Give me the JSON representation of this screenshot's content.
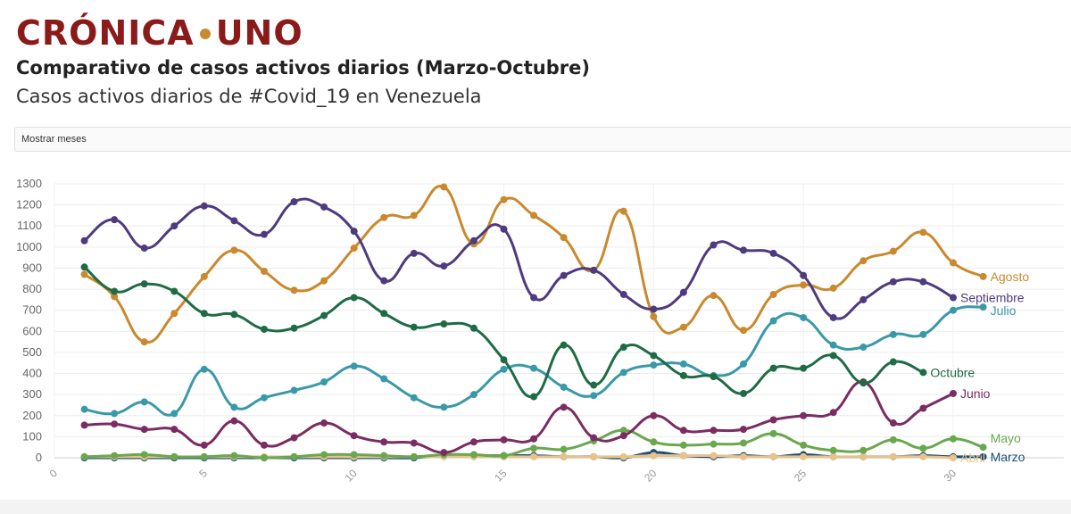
{
  "brand": {
    "logo_left": "CRÓNICA",
    "logo_right": "UNO",
    "logo_color": "#8b1a1a",
    "dot_color": "#c9892e"
  },
  "header": {
    "title": "Comparativo de casos activos diarios (Marzo-Octubre)",
    "subtitle": "Casos activos diarios de #Covid_19 en Venezuela"
  },
  "controls": {
    "month_toggle_label": "Mostrar meses"
  },
  "chart_data": {
    "type": "line",
    "xlim": [
      0,
      31
    ],
    "ylim": [
      0,
      1300
    ],
    "x_ticks": [
      0,
      5,
      10,
      15,
      20,
      25,
      30
    ],
    "y_ticks": [
      0,
      100,
      200,
      300,
      400,
      500,
      600,
      700,
      800,
      900,
      1000,
      1100,
      1200,
      1300
    ],
    "grid": true,
    "legend": "inline-right",
    "series": [
      {
        "name": "Marzo",
        "color": "#1c4e73",
        "x": [
          1,
          2,
          3,
          4,
          5,
          6,
          7,
          8,
          9,
          10,
          11,
          12,
          13,
          14,
          15,
          16,
          17,
          18,
          19,
          20,
          21,
          22,
          23,
          24,
          25,
          26,
          27,
          28,
          29,
          30,
          31
        ],
        "values": [
          0,
          0,
          0,
          0,
          0,
          0,
          0,
          0,
          0,
          0,
          0,
          0,
          10,
          10,
          10,
          10,
          5,
          5,
          0,
          25,
          10,
          5,
          10,
          5,
          15,
          5,
          5,
          5,
          10,
          5,
          5
        ]
      },
      {
        "name": "Abril",
        "color": "#e8c28a",
        "x": [
          1,
          2,
          3,
          4,
          5,
          6,
          7,
          8,
          9,
          10,
          11,
          12,
          13,
          14,
          15,
          16,
          17,
          18,
          19,
          20,
          21,
          22,
          23,
          24,
          25,
          26,
          27,
          28,
          29,
          30
        ],
        "values": [
          5,
          5,
          5,
          5,
          5,
          5,
          5,
          5,
          5,
          5,
          5,
          5,
          5,
          5,
          5,
          5,
          5,
          5,
          5,
          10,
          10,
          10,
          5,
          5,
          5,
          5,
          5,
          5,
          5,
          0
        ]
      },
      {
        "name": "Mayo",
        "color": "#6aa84f",
        "x": [
          1,
          2,
          3,
          4,
          5,
          6,
          7,
          8,
          9,
          10,
          11,
          12,
          13,
          14,
          15,
          16,
          17,
          18,
          19,
          20,
          21,
          22,
          23,
          24,
          25,
          26,
          27,
          28,
          29,
          30,
          31
        ],
        "values": [
          5,
          10,
          15,
          5,
          5,
          10,
          0,
          5,
          15,
          15,
          10,
          5,
          15,
          15,
          10,
          45,
          40,
          80,
          130,
          75,
          60,
          65,
          70,
          115,
          60,
          35,
          35,
          85,
          45,
          90,
          50
        ]
      },
      {
        "name": "Junio",
        "color": "#7b2c62",
        "x": [
          1,
          2,
          3,
          4,
          5,
          6,
          7,
          8,
          9,
          10,
          11,
          12,
          13,
          14,
          15,
          16,
          17,
          18,
          19,
          20,
          21,
          22,
          23,
          24,
          25,
          26,
          27,
          28,
          29,
          30
        ],
        "values": [
          155,
          160,
          135,
          135,
          60,
          175,
          60,
          95,
          165,
          105,
          75,
          70,
          25,
          75,
          85,
          90,
          240,
          95,
          105,
          200,
          130,
          130,
          135,
          180,
          200,
          215,
          360,
          165,
          235,
          305
        ]
      },
      {
        "name": "Julio",
        "color": "#3a99a8",
        "x": [
          1,
          2,
          3,
          4,
          5,
          6,
          7,
          8,
          9,
          10,
          11,
          12,
          13,
          14,
          15,
          16,
          17,
          18,
          19,
          20,
          21,
          22,
          23,
          24,
          25,
          26,
          27,
          28,
          29,
          30,
          31
        ],
        "values": [
          230,
          210,
          265,
          210,
          420,
          240,
          285,
          320,
          360,
          435,
          375,
          285,
          240,
          300,
          420,
          425,
          335,
          295,
          405,
          440,
          445,
          390,
          445,
          650,
          665,
          535,
          525,
          585,
          585,
          700,
          715
        ]
      },
      {
        "name": "Agosto",
        "color": "#c9892e",
        "x": [
          1,
          2,
          3,
          4,
          5,
          6,
          7,
          8,
          9,
          10,
          11,
          12,
          13,
          14,
          15,
          16,
          17,
          18,
          19,
          20,
          21,
          22,
          23,
          24,
          25,
          26,
          27,
          28,
          29,
          30,
          31
        ],
        "values": [
          870,
          765,
          550,
          685,
          860,
          985,
          885,
          795,
          840,
          995,
          1140,
          1150,
          1285,
          1015,
          1225,
          1150,
          1045,
          890,
          1170,
          670,
          620,
          770,
          605,
          775,
          820,
          805,
          935,
          980,
          1070,
          925,
          860
        ]
      },
      {
        "name": "Septiembre",
        "color": "#4e3b7f",
        "x": [
          1,
          2,
          3,
          4,
          5,
          6,
          7,
          8,
          9,
          10,
          11,
          12,
          13,
          14,
          15,
          16,
          17,
          18,
          19,
          20,
          21,
          22,
          23,
          24,
          25,
          26,
          27,
          28,
          29,
          30
        ],
        "values": [
          1030,
          1130,
          995,
          1100,
          1195,
          1125,
          1060,
          1215,
          1190,
          1075,
          840,
          970,
          910,
          1030,
          1085,
          760,
          865,
          890,
          775,
          705,
          785,
          1010,
          985,
          970,
          865,
          665,
          750,
          835,
          835,
          760
        ]
      },
      {
        "name": "Octubre",
        "color": "#1e6b45",
        "x": [
          1,
          2,
          3,
          4,
          5,
          6,
          7,
          8,
          9,
          10,
          11,
          12,
          13,
          14,
          15,
          16,
          17,
          18,
          19,
          20,
          21,
          22,
          23,
          24,
          25,
          26,
          27,
          28,
          29
        ],
        "values": [
          905,
          790,
          825,
          790,
          685,
          680,
          610,
          615,
          675,
          760,
          685,
          620,
          635,
          615,
          465,
          290,
          535,
          345,
          525,
          485,
          390,
          385,
          305,
          425,
          425,
          485,
          355,
          455,
          405
        ]
      }
    ]
  }
}
